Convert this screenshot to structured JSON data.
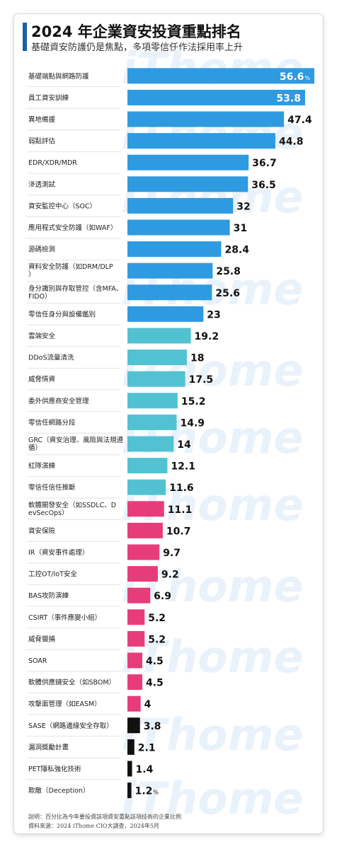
{
  "header": {
    "title": "2024 年企業資安投資重點排名",
    "subtitle": "基礎資安防護仍是焦點，多項零信任作法採用率上升"
  },
  "footer": {
    "note": "說明：百分比為今年要投資該項資安重點該項技術的企業比例",
    "source": "資料來源：2024 iThome CIO大調查，2024年5月"
  },
  "watermark": "iThome",
  "colors": {
    "blue": "#2e9ae0",
    "teal": "#52c2d2",
    "pink": "#e63d7a",
    "black": "#111111"
  },
  "chart_data": {
    "type": "bar",
    "orientation": "horizontal",
    "unit": "%",
    "categories": [
      "基礎端點與網路防護",
      "員工資安訓練",
      "異地備援",
      "弱點評估",
      "EDR/XDR/MDR",
      "滲透測試",
      "資安監控中心（SOC）",
      "應用程式安全防護（如WAF）",
      "源碼檢測",
      "資料安全防護（如DRM/DLP）",
      "身分識別與存取管控（含MFA、FIDO）",
      "零信任身分與設備鑑別",
      "雲端安全",
      "DDoS流量清洗",
      "威脅情資",
      "委外供應商安全管理",
      "零信任網路分段",
      "GRC（資安治理、風險與法規遵循）",
      "紅隊演練",
      "零信任信任推斷",
      "軟體開發安全（如SSDLC、DevSecOps）",
      "資安保險",
      "IR（資安事件處理）",
      "工控OT/IoT安全",
      "BAS攻防演練",
      "CSIRT（事件應變小組）",
      "威脅獵捕",
      "SOAR",
      "軟體供應鏈安全（如SBOM）",
      "攻擊面管理（如EASM）",
      "SASE（網路邊緣安全存取）",
      "漏洞獎勵計畫",
      "PET隱私強化技術",
      "欺敵（Deception）"
    ],
    "value_labels": [
      "56.6",
      "53.8",
      "47.4",
      "44.8",
      "36.7",
      "36.5",
      "32",
      "31",
      "28.4",
      "25.8",
      "25.6",
      "23",
      "19.2",
      "18",
      "17.5",
      "15.2",
      "14.9",
      "14",
      "12.1",
      "11.6",
      "11.1",
      "10.7",
      "9.7",
      "9.2",
      "6.9",
      "5.2",
      "5.2",
      "4.5",
      "4.5",
      "4",
      "3.8",
      "2.1",
      "1.4",
      "1.2"
    ],
    "values": [
      56.6,
      53.8,
      47.4,
      44.8,
      36.7,
      36.5,
      32,
      31,
      28.4,
      25.8,
      25.6,
      23,
      19.2,
      18,
      17.5,
      15.2,
      14.9,
      14,
      12.1,
      11.6,
      11.1,
      10.7,
      9.7,
      9.2,
      6.9,
      5.2,
      5.2,
      4.5,
      4.5,
      4,
      3.8,
      2.1,
      1.4,
      1.2
    ],
    "color_groups": [
      "blue",
      "blue",
      "blue",
      "blue",
      "blue",
      "blue",
      "blue",
      "blue",
      "blue",
      "blue",
      "blue",
      "blue",
      "teal",
      "teal",
      "teal",
      "teal",
      "teal",
      "teal",
      "teal",
      "teal",
      "pink",
      "pink",
      "pink",
      "pink",
      "pink",
      "pink",
      "pink",
      "pink",
      "pink",
      "pink",
      "black",
      "black",
      "black",
      "black"
    ],
    "percent_marks": [
      "%",
      "%"
    ],
    "xlim": [
      0,
      56.6
    ]
  }
}
